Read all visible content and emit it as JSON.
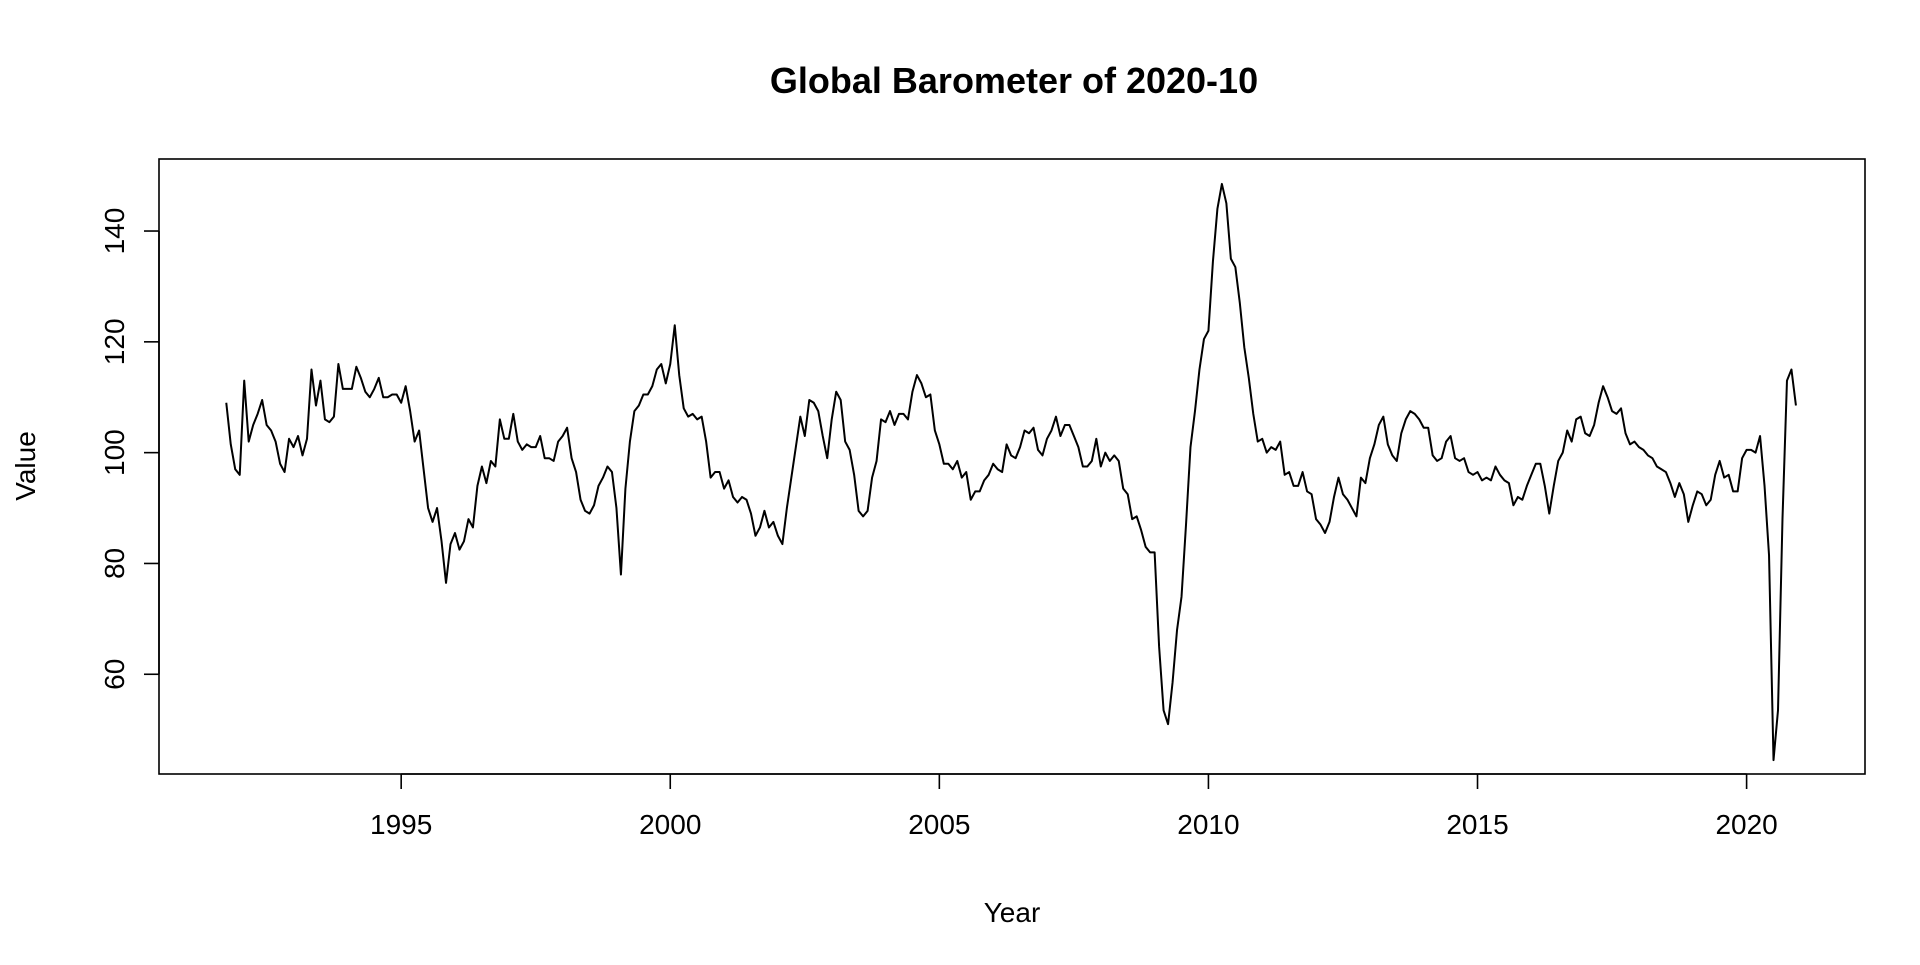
{
  "chart_data": {
    "type": "line",
    "title": "Global Barometer of 2020-10",
    "xlabel": "Year",
    "ylabel": "Value",
    "xlim": [
      1990.5,
      2022.2
    ],
    "ylim": [
      42,
      153
    ],
    "x_ticks": [
      1995,
      2000,
      2005,
      2010,
      2015,
      2020
    ],
    "y_ticks": [
      60,
      80,
      100,
      120,
      140
    ],
    "grid": false,
    "legend": "none",
    "line_color": "#000000",
    "series": [
      {
        "x_start": 1991.75,
        "x_step_months": 1,
        "values": [
          109,
          101.5,
          97,
          96,
          113,
          102,
          105,
          107,
          109.5,
          105,
          104,
          102,
          98,
          96.5,
          102.5,
          101,
          103,
          99.5,
          102.5,
          115,
          108.5,
          113,
          106,
          105.5,
          106.5,
          116,
          111.5,
          111.5,
          111.5,
          115.5,
          113.5,
          111,
          110,
          111.5,
          113.5,
          110,
          110,
          110.5,
          110.5,
          109,
          112,
          107.5,
          102,
          104,
          97,
          90,
          87.5,
          90,
          84,
          76.5,
          83.5,
          85.5,
          82.5,
          84,
          88,
          86.5,
          94,
          97.5,
          94.5,
          98.5,
          97.5,
          106,
          102.5,
          102.5,
          107,
          102,
          100.5,
          101.5,
          101,
          101,
          103,
          99,
          99,
          98.5,
          102,
          103,
          104.5,
          99,
          96.5,
          91.5,
          89.5,
          89,
          90.5,
          94,
          95.5,
          97.5,
          96.5,
          90,
          78,
          93.5,
          102,
          107.5,
          108.5,
          110.5,
          110.5,
          112,
          115,
          116,
          112.5,
          116,
          123,
          114,
          108,
          106.5,
          107,
          106,
          106.5,
          102,
          95.5,
          96.5,
          96.5,
          93.5,
          95,
          92,
          91,
          92,
          91.5,
          89,
          85,
          86.5,
          89.5,
          86.5,
          87.5,
          85,
          83.5,
          90,
          95.5,
          101,
          106.5,
          103,
          109.5,
          109,
          107.5,
          103,
          99,
          106,
          111,
          109.5,
          102,
          100.5,
          96,
          89.5,
          88.5,
          89.5,
          95.5,
          98.5,
          106,
          105.5,
          107.5,
          105,
          107,
          107,
          106,
          111,
          114,
          112.5,
          110,
          110.5,
          104,
          101.5,
          98,
          98,
          97,
          98.5,
          95.5,
          96.5,
          91.5,
          93,
          93,
          95,
          96,
          98,
          97,
          96.5,
          101.5,
          99.5,
          99,
          101,
          104,
          103.5,
          104.5,
          100.5,
          99.5,
          102.5,
          104,
          106.5,
          103,
          105,
          105,
          103,
          101,
          97.5,
          97.5,
          98.5,
          102.5,
          97.5,
          100,
          98.5,
          99.5,
          98.5,
          93.5,
          92.5,
          88,
          88.5,
          86,
          83,
          82,
          82,
          65,
          53.5,
          51,
          58.5,
          68,
          74,
          87,
          101,
          107.5,
          115,
          120.5,
          122,
          134.5,
          144,
          148.5,
          145,
          135,
          133.5,
          127,
          119,
          113.5,
          107,
          102,
          102.5,
          100,
          101,
          100.5,
          102,
          96,
          96.5,
          94,
          94,
          96.5,
          93,
          92.5,
          88,
          87,
          85.5,
          87.5,
          92,
          95.5,
          92.5,
          91.5,
          90,
          88.5,
          95.5,
          94.5,
          99,
          101.5,
          105,
          106.5,
          101.5,
          99.5,
          98.5,
          103.5,
          106,
          107.5,
          107,
          106,
          104.5,
          104.5,
          99.5,
          98.5,
          99,
          102,
          103,
          99,
          98.5,
          99,
          96.5,
          96,
          96.5,
          95,
          95.5,
          95,
          97.5,
          96,
          95,
          94.5,
          90.5,
          92,
          91.5,
          94,
          96,
          98,
          98,
          94,
          89,
          94,
          98.5,
          100,
          104,
          102,
          106,
          106.5,
          103.5,
          103,
          105,
          109,
          112,
          110,
          107.5,
          107,
          108,
          103.5,
          101.5,
          102,
          101,
          100.5,
          99.5,
          99,
          97.5,
          97,
          96.5,
          94.5,
          92,
          94.5,
          92.5,
          87.5,
          90.5,
          93,
          92.5,
          90.5,
          91.5,
          96,
          98.5,
          95.5,
          96,
          93,
          93,
          99,
          100.5,
          100.5,
          100,
          103,
          94,
          81.5,
          44.5,
          53.5,
          88,
          113,
          115,
          108.5
        ]
      }
    ]
  }
}
